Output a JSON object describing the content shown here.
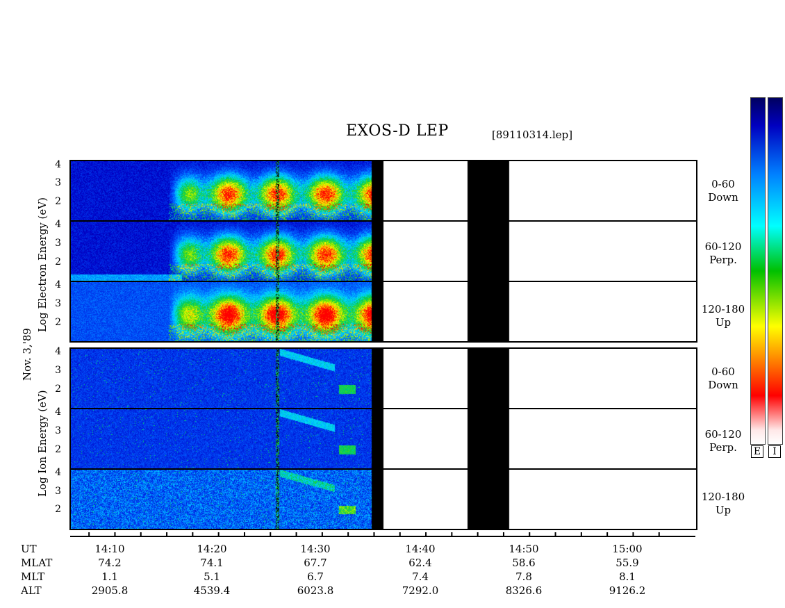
{
  "title": "EXOS-D LEP",
  "file": "[89110314.lep]",
  "date_label": "Nov. 3,'89",
  "electron_label": "Log  Electron  Energy  (eV)",
  "ion_label": "Log  Ion  Energy  (eV)",
  "y_ticks": [
    "4",
    "3",
    "2"
  ],
  "pitch_labels": [
    {
      "range": "0-60",
      "dir": "Down"
    },
    {
      "range": "60-120",
      "dir": "Perp."
    },
    {
      "range": "120-180",
      "dir": "Up"
    }
  ],
  "colorbar": {
    "electron": "E",
    "ion": "I"
  },
  "colors": {
    "spectrum": [
      "#ffe8e8",
      "#ff0000",
      "#ff8000",
      "#ffff00",
      "#00c000",
      "#00ffff",
      "#0080ff",
      "#0000c0",
      "#000060"
    ],
    "data_gap": "#000000"
  },
  "axis": {
    "row_labels": [
      "UT",
      "MLAT",
      "MLT",
      "ALT"
    ],
    "columns": [
      {
        "UT": "14:10",
        "MLAT": "74.2",
        "MLT": "1.1",
        "ALT": "2905.8"
      },
      {
        "UT": "14:20",
        "MLAT": "74.1",
        "MLT": "5.1",
        "ALT": "4539.4"
      },
      {
        "UT": "14:30",
        "MLAT": "67.7",
        "MLT": "6.7",
        "ALT": "6023.8"
      },
      {
        "UT": "14:40",
        "MLAT": "62.4",
        "MLT": "7.4",
        "ALT": "7292.0"
      },
      {
        "UT": "14:50",
        "MLAT": "58.6",
        "MLT": "7.8",
        "ALT": "8326.6"
      },
      {
        "UT": "15:00",
        "MLAT": "55.9",
        "MLT": "8.1",
        "ALT": "9126.2"
      }
    ]
  },
  "chart_data": {
    "type": "heatmap",
    "title": "EXOS-D LEP",
    "xlabel": "UT",
    "x_ticks": [
      "14:10",
      "14:20",
      "14:30",
      "14:40",
      "14:50",
      "15:00"
    ],
    "y_range_log_eV": [
      1.3,
      4.2
    ],
    "species": [
      {
        "name": "Electron",
        "pitch_bins": [
          "0-60 Down",
          "60-120 Perp.",
          "120-180 Up"
        ]
      },
      {
        "name": "Ion",
        "pitch_bins": [
          "0-60 Down",
          "60-120 Perp.",
          "120-180 Up"
        ]
      }
    ],
    "data_gaps_UT": [
      [
        "14:35:30",
        "14:36:40"
      ],
      [
        "14:44:40",
        "14:48:40"
      ]
    ],
    "data_end_UT": "14:36:40"
  }
}
